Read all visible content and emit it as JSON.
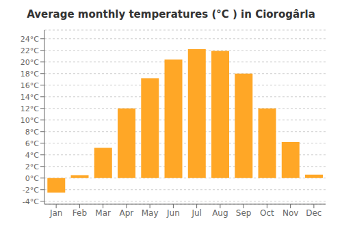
{
  "chart_data": {
    "type": "bar",
    "title": "Average monthly temperatures (°C ) in Ciorogârla",
    "categories": [
      "Jan",
      "Feb",
      "Mar",
      "Apr",
      "May",
      "Jun",
      "Jul",
      "Aug",
      "Sep",
      "Oct",
      "Nov",
      "Dec"
    ],
    "values": [
      -2.5,
      0.5,
      5.2,
      12.0,
      17.2,
      20.4,
      22.2,
      21.9,
      18.0,
      12.0,
      6.2,
      0.6
    ],
    "color": "#FFA726",
    "ylim": [
      -4.5,
      25.5
    ],
    "yticks": [
      {
        "value": -4,
        "label": "-4°C"
      },
      {
        "value": -2,
        "label": "-2°C"
      },
      {
        "value": 0,
        "label": "0°C"
      },
      {
        "value": 2,
        "label": "2°C"
      },
      {
        "value": 4,
        "label": "4°C"
      },
      {
        "value": 6,
        "label": "6°C"
      },
      {
        "value": 8,
        "label": "8°C"
      },
      {
        "value": 10,
        "label": "10°C"
      },
      {
        "value": 12,
        "label": "12°C"
      },
      {
        "value": 14,
        "label": "14°C"
      },
      {
        "value": 16,
        "label": "16°C"
      },
      {
        "value": 18,
        "label": "18°C"
      },
      {
        "value": 20,
        "label": "20°C"
      },
      {
        "value": 22,
        "label": "22°C"
      },
      {
        "value": 24,
        "label": "24°C"
      }
    ],
    "grid": true
  }
}
